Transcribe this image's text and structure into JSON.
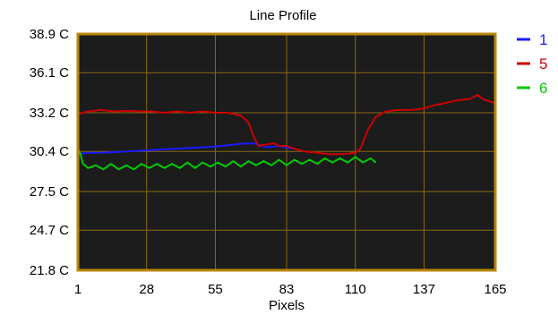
{
  "chart_data": {
    "type": "line",
    "title": "Line Profile",
    "xlabel": "Pixels",
    "ylabel": "",
    "xlim": [
      1,
      165
    ],
    "ylim": [
      21.8,
      38.9
    ],
    "x_ticks": [
      1,
      28,
      55,
      83,
      110,
      137,
      165
    ],
    "y_ticks": [
      {
        "value": 38.9,
        "label": "38.9 C"
      },
      {
        "value": 36.1,
        "label": "36.1 C"
      },
      {
        "value": 33.2,
        "label": "33.2 C"
      },
      {
        "value": 30.4,
        "label": "30.4 C"
      },
      {
        "value": 27.5,
        "label": "27.5 C"
      },
      {
        "value": 24.7,
        "label": "24.7 C"
      },
      {
        "value": 21.8,
        "label": "21.8 C"
      }
    ],
    "grid": true,
    "legend_position": "right",
    "background": "#1c1c1c",
    "frame_color": "#b8860b",
    "grid_color": "#8b6914",
    "series": [
      {
        "name": "1",
        "color": "#1a1aff",
        "x": [
          1,
          5,
          10,
          15,
          20,
          25,
          30,
          35,
          40,
          45,
          50,
          55,
          60,
          65,
          70,
          75,
          80,
          85
        ],
        "y": [
          30.2,
          30.3,
          30.3,
          30.35,
          30.4,
          30.45,
          30.5,
          30.55,
          30.6,
          30.65,
          30.7,
          30.75,
          30.85,
          30.95,
          31.0,
          30.7,
          30.8,
          30.6
        ]
      },
      {
        "name": "5",
        "color": "#cc0000",
        "x": [
          1,
          5,
          10,
          15,
          20,
          25,
          30,
          35,
          40,
          45,
          50,
          55,
          60,
          65,
          68,
          70,
          72,
          75,
          78,
          80,
          83,
          86,
          90,
          95,
          100,
          105,
          110,
          112,
          115,
          118,
          122,
          127,
          132,
          137,
          140,
          145,
          150,
          155,
          158,
          160,
          163,
          165
        ],
        "y": [
          33.1,
          33.3,
          33.4,
          33.3,
          33.35,
          33.3,
          33.3,
          33.2,
          33.3,
          33.2,
          33.3,
          33.2,
          33.2,
          33.0,
          32.5,
          31.5,
          30.8,
          30.9,
          31.0,
          30.8,
          30.8,
          30.6,
          30.4,
          30.3,
          30.2,
          30.2,
          30.3,
          30.6,
          32.0,
          32.9,
          33.3,
          33.4,
          33.4,
          33.5,
          33.7,
          33.9,
          34.1,
          34.2,
          34.5,
          34.2,
          34.0,
          33.9
        ]
      },
      {
        "name": "6",
        "color": "#00cc00",
        "x": [
          1,
          2,
          3,
          5,
          8,
          11,
          14,
          17,
          20,
          23,
          26,
          29,
          32,
          35,
          38,
          41,
          44,
          47,
          50,
          53,
          56,
          59,
          62,
          65,
          68,
          71,
          74,
          77,
          80,
          83,
          86,
          89,
          92,
          95,
          98,
          101,
          104,
          107,
          110,
          113,
          116,
          118
        ],
        "y": [
          30.6,
          30.2,
          29.5,
          29.2,
          29.4,
          29.1,
          29.5,
          29.1,
          29.4,
          29.1,
          29.5,
          29.2,
          29.5,
          29.2,
          29.5,
          29.2,
          29.6,
          29.2,
          29.6,
          29.3,
          29.6,
          29.3,
          29.7,
          29.3,
          29.7,
          29.4,
          29.7,
          29.4,
          29.8,
          29.4,
          29.8,
          29.5,
          29.8,
          29.5,
          29.9,
          29.6,
          29.9,
          29.6,
          30.0,
          29.6,
          29.9,
          29.6
        ]
      }
    ]
  }
}
